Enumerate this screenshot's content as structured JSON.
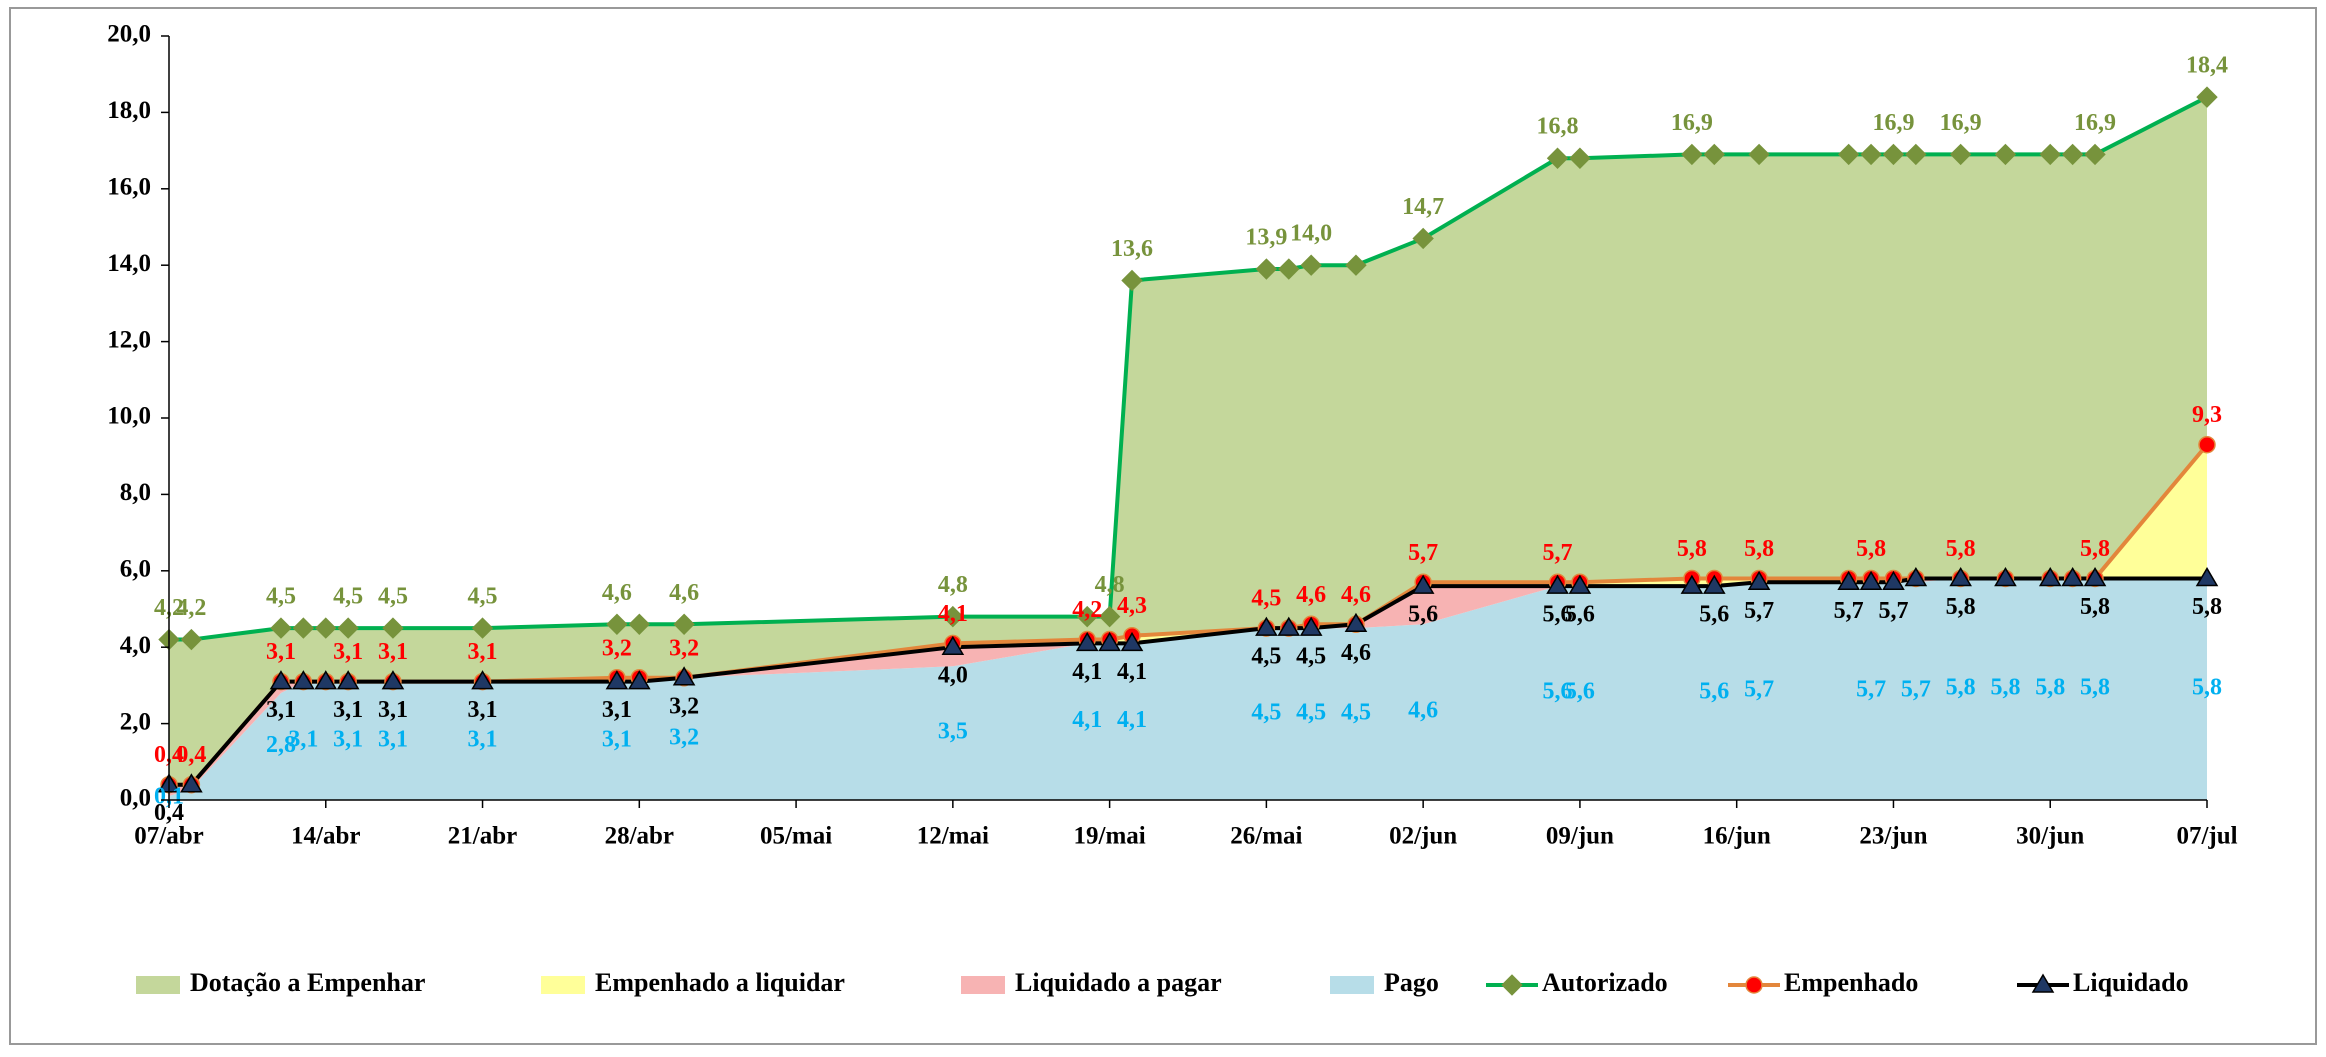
{
  "chart_data": {
    "type": "area",
    "x": [
      0,
      1,
      5,
      6,
      7,
      8,
      10,
      14,
      20,
      21,
      23,
      35,
      41,
      42,
      43,
      49,
      50,
      51,
      53,
      56,
      62,
      63,
      68,
      69,
      71,
      75,
      76,
      77,
      78,
      80,
      82,
      84,
      85,
      86,
      91
    ],
    "xlim": [
      0,
      91
    ],
    "xticks": [
      {
        "value": 0,
        "label": "07/abr"
      },
      {
        "value": 7,
        "label": "14/abr"
      },
      {
        "value": 14,
        "label": "21/abr"
      },
      {
        "value": 21,
        "label": "28/abr"
      },
      {
        "value": 28,
        "label": "05/mai"
      },
      {
        "value": 35,
        "label": "12/mai"
      },
      {
        "value": 42,
        "label": "19/mai"
      },
      {
        "value": 49,
        "label": "26/mai"
      },
      {
        "value": 56,
        "label": "02/jun"
      },
      {
        "value": 63,
        "label": "09/jun"
      },
      {
        "value": 70,
        "label": "16/jun"
      },
      {
        "value": 77,
        "label": "23/jun"
      },
      {
        "value": 84,
        "label": "30/jun"
      },
      {
        "value": 91,
        "label": "07/jul"
      }
    ],
    "ylim": [
      0,
      20
    ],
    "yticks": [
      {
        "value": 0,
        "label": "0,0"
      },
      {
        "value": 2,
        "label": "2,0"
      },
      {
        "value": 4,
        "label": "4,0"
      },
      {
        "value": 6,
        "label": "6,0"
      },
      {
        "value": 8,
        "label": "8,0"
      },
      {
        "value": 10,
        "label": "10,0"
      },
      {
        "value": 12,
        "label": "12,0"
      },
      {
        "value": 14,
        "label": "14,0"
      },
      {
        "value": 16,
        "label": "16,0"
      },
      {
        "value": 18,
        "label": "18,0"
      },
      {
        "value": 20,
        "label": "20,0"
      }
    ],
    "grid": false,
    "legend": "bottom",
    "series": [
      {
        "name": "Dotação a Empenhar",
        "type": "area",
        "color": "#c4d79b",
        "values": [
          3.8,
          3.8,
          1.4,
          1.4,
          1.4,
          1.4,
          1.4,
          1.4,
          1.4,
          1.4,
          1.4,
          0.7,
          0.6,
          0.6,
          9.3,
          9.4,
          9.4,
          9.4,
          9.4,
          9.0,
          11.1,
          11.1,
          11.1,
          11.1,
          11.1,
          11.1,
          11.1,
          11.1,
          11.1,
          11.1,
          11.1,
          11.1,
          11.1,
          11.1,
          9.1
        ]
      },
      {
        "name": "Empenhado a liquidar",
        "type": "area",
        "color": "#ffff99",
        "values": [
          0,
          0,
          0,
          0,
          0,
          0,
          0,
          0,
          0.1,
          0.1,
          0,
          0.1,
          0.1,
          0.1,
          0.2,
          0,
          0,
          0.1,
          0,
          0.1,
          0.1,
          0.1,
          0.2,
          0.2,
          0.1,
          0.1,
          0.1,
          0.1,
          0,
          0,
          0,
          0,
          0,
          0,
          3.5
        ]
      },
      {
        "name": "Liquidado a pagar",
        "type": "area",
        "color": "#f7b3b3",
        "values": [
          0.3,
          0.1,
          0.3,
          0,
          0,
          0,
          0,
          0,
          0,
          0,
          0,
          0.5,
          0,
          0,
          0,
          0,
          0,
          0,
          0.1,
          1.0,
          0,
          0,
          0,
          0,
          0,
          0,
          0,
          0,
          0.1,
          0,
          0,
          0,
          0,
          0,
          0
        ]
      },
      {
        "name": "Pago",
        "type": "area",
        "color": "#b7dde8",
        "label_color": "#00b0f0",
        "values": [
          0.1,
          0.3,
          2.8,
          3.1,
          3.1,
          3.1,
          3.1,
          3.1,
          3.1,
          3.1,
          3.2,
          3.5,
          4.1,
          4.1,
          4.1,
          4.5,
          4.5,
          4.5,
          4.5,
          4.6,
          5.6,
          5.6,
          5.6,
          5.6,
          5.7,
          5.7,
          5.7,
          5.7,
          5.7,
          5.8,
          5.8,
          5.8,
          5.8,
          5.8,
          5.8
        ],
        "value_labels": [
          "0,1",
          null,
          "2,8",
          "3,1",
          null,
          "3,1",
          "3,1",
          "3,1",
          "3,1",
          null,
          "3,2",
          "3,5",
          "4,1",
          null,
          "4,1",
          "4,5",
          null,
          "4,5",
          "4,5",
          "4,6",
          "5,6",
          "5,6",
          null,
          "5,6",
          "5,7",
          null,
          "5,7",
          null,
          "5,7",
          "5,8",
          "5,8",
          "5,8",
          null,
          "5,8",
          "5,8"
        ]
      },
      {
        "name": "Autorizado",
        "type": "line",
        "color": "#00b050",
        "marker": "diamond",
        "marker_color": "#77933c",
        "label_color": "#77933c",
        "values": [
          4.2,
          4.2,
          4.5,
          4.5,
          4.5,
          4.5,
          4.5,
          4.5,
          4.6,
          4.6,
          4.6,
          4.8,
          4.8,
          4.8,
          13.6,
          13.9,
          13.9,
          14.0,
          14.0,
          14.7,
          16.8,
          16.8,
          16.9,
          16.9,
          16.9,
          16.9,
          16.9,
          16.9,
          16.9,
          16.9,
          16.9,
          16.9,
          16.9,
          16.9,
          18.4
        ],
        "value_labels": [
          "4,2",
          "4,2",
          "4,5",
          null,
          null,
          "4,5",
          "4,5",
          "4,5",
          "4,6",
          null,
          "4,6",
          "4,8",
          null,
          "4,8",
          "13,6",
          "13,9",
          null,
          "14,0",
          null,
          "14,7",
          "16,8",
          null,
          "16,9",
          null,
          null,
          null,
          null,
          "16,9",
          null,
          "16,9",
          null,
          null,
          null,
          "16,9",
          "18,4"
        ]
      },
      {
        "name": "Empenhado",
        "type": "line",
        "color": "#e3863b",
        "marker": "circle",
        "marker_color": "#ff0000",
        "label_color": "#ff0000",
        "values": [
          0.4,
          0.4,
          3.1,
          3.1,
          3.1,
          3.1,
          3.1,
          3.1,
          3.2,
          3.2,
          3.2,
          4.1,
          4.2,
          4.2,
          4.3,
          4.5,
          4.5,
          4.6,
          4.6,
          5.7,
          5.7,
          5.7,
          5.8,
          5.8,
          5.8,
          5.8,
          5.8,
          5.8,
          5.8,
          5.8,
          5.8,
          5.8,
          5.8,
          5.8,
          9.3
        ],
        "value_labels": [
          "0,4",
          "0,4",
          "3,1",
          null,
          null,
          "3,1",
          "3,1",
          "3,1",
          "3,2",
          null,
          "3,2",
          "4,1",
          "4,2",
          null,
          "4,3",
          "4,5",
          null,
          "4,6",
          "4,6",
          "5,7",
          "5,7",
          null,
          "5,8",
          null,
          "5,8",
          null,
          "5,8",
          null,
          null,
          "5,8",
          null,
          null,
          null,
          "5,8",
          "9,3"
        ]
      },
      {
        "name": "Liquidado",
        "type": "line",
        "color": "#000000",
        "marker": "triangle",
        "marker_color": "#1f3864",
        "label_color": "#000000",
        "values": [
          0.4,
          0.4,
          3.1,
          3.1,
          3.1,
          3.1,
          3.1,
          3.1,
          3.1,
          3.1,
          3.2,
          4.0,
          4.1,
          4.1,
          4.1,
          4.5,
          4.5,
          4.5,
          4.6,
          5.6,
          5.6,
          5.6,
          5.6,
          5.6,
          5.7,
          5.7,
          5.7,
          5.7,
          5.8,
          5.8,
          5.8,
          5.8,
          5.8,
          5.8,
          5.8
        ],
        "value_labels": [
          "0,4",
          null,
          "3,1",
          null,
          null,
          "3,1",
          "3,1",
          "3,1",
          "3,1",
          null,
          "3,2",
          "4,0",
          "4,1",
          null,
          "4,1",
          "4,5",
          null,
          "4,5",
          "4,6",
          "5,6",
          "5,6",
          "5,6",
          null,
          "5,6",
          "5,7",
          "5,7",
          null,
          "5,7",
          null,
          "5,8",
          null,
          null,
          null,
          "5,8",
          "5,8"
        ]
      }
    ]
  }
}
